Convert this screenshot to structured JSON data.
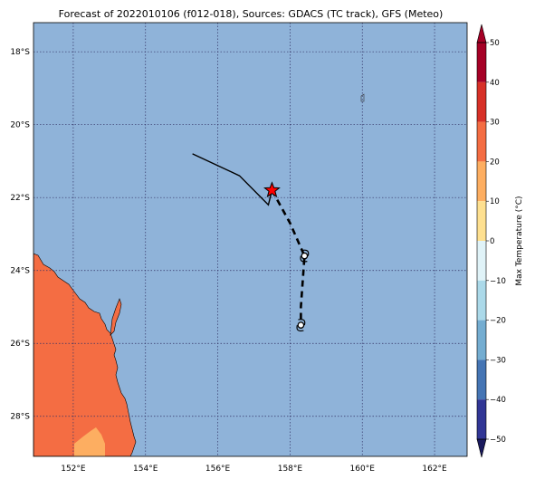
{
  "map": {
    "title": "Forecast of 2022010106 (f012-018), Sources: GDACS (TC track), GFS (Meteo)",
    "extent": {
      "lon": [
        150.9,
        162.9
      ],
      "lat": [
        -29.1,
        -17.2
      ]
    },
    "lon_ticks": [
      {
        "value": 152,
        "label": "152°E"
      },
      {
        "value": 154,
        "label": "154°E"
      },
      {
        "value": 156,
        "label": "156°E"
      },
      {
        "value": 158,
        "label": "158°E"
      },
      {
        "value": 160,
        "label": "160°E"
      },
      {
        "value": 162,
        "label": "162°E"
      }
    ],
    "lat_ticks": [
      {
        "value": -18,
        "label": "18°S"
      },
      {
        "value": -20,
        "label": "20°S"
      },
      {
        "value": -22,
        "label": "22°S"
      },
      {
        "value": -24,
        "label": "24°S"
      },
      {
        "value": -26,
        "label": "26°S"
      },
      {
        "value": -28,
        "label": "28°S"
      }
    ],
    "colors": {
      "ocean": "#8fb3d9",
      "land": "#f46d43",
      "land_warm": "#fdae61",
      "grid": "#333366",
      "track": "#000000",
      "current_position": "#ff0000"
    },
    "past_track": [
      [
        155.3,
        -20.8
      ],
      [
        156.6,
        -21.4
      ],
      [
        157.4,
        -22.2
      ],
      [
        157.5,
        -21.8
      ]
    ],
    "forecast_track": [
      [
        157.5,
        -21.8
      ],
      [
        158.0,
        -22.7
      ],
      [
        158.4,
        -23.6
      ],
      [
        158.3,
        -25.0
      ],
      [
        158.3,
        -25.5
      ]
    ],
    "current_position": [
      157.5,
      -21.8
    ],
    "forecast_symbols": [
      [
        158.4,
        -23.6
      ],
      [
        158.3,
        -25.5
      ]
    ]
  },
  "colorbar": {
    "label": "Max Temperature (°C)",
    "min": -50,
    "max": 50,
    "ticks": [
      "50",
      "40",
      "30",
      "20",
      "10",
      "0",
      "−10",
      "−20",
      "−30",
      "−40",
      "−50"
    ],
    "levels": [
      {
        "from": 40,
        "to": 50,
        "color": "#a50026"
      },
      {
        "from": 30,
        "to": 40,
        "color": "#d73027"
      },
      {
        "from": 20,
        "to": 30,
        "color": "#f46d43"
      },
      {
        "from": 10,
        "to": 20,
        "color": "#fdae61"
      },
      {
        "from": 0,
        "to": 10,
        "color": "#fee090"
      },
      {
        "from": -10,
        "to": 0,
        "color": "#e0f3f8"
      },
      {
        "from": -20,
        "to": -10,
        "color": "#abd9e9"
      },
      {
        "from": -30,
        "to": -20,
        "color": "#74add1"
      },
      {
        "from": -40,
        "to": -30,
        "color": "#4575b4"
      },
      {
        "from": -50,
        "to": -40,
        "color": "#313695"
      }
    ],
    "extend_max_color": "#a50026",
    "extend_min_color": "#1a1a5e"
  }
}
